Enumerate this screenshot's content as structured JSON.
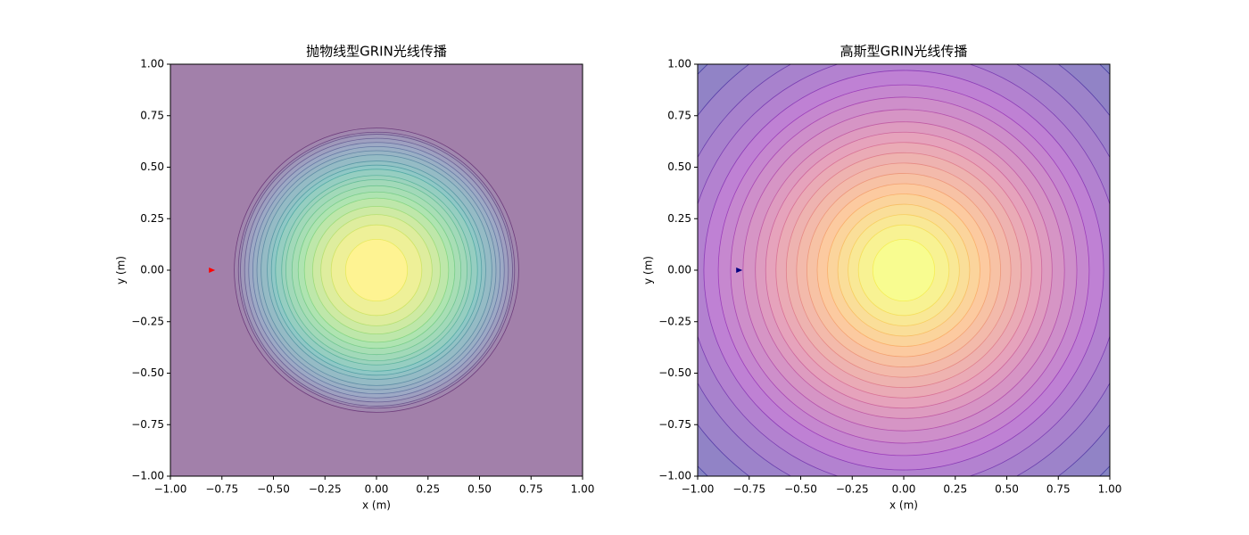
{
  "chart_data": [
    {
      "type": "contour",
      "title": "抛物线型GRIN光线传播",
      "x_label": "x (m)",
      "y_label": "y (m)",
      "colormap": "viridis",
      "alpha": 0.5,
      "contour_radii": [
        0.69,
        0.67,
        0.66,
        0.64,
        0.62,
        0.6,
        0.58,
        0.56,
        0.53,
        0.51,
        0.49,
        0.46,
        0.44,
        0.41,
        0.38,
        0.35,
        0.31,
        0.27,
        0.22,
        0.15
      ],
      "series": [
        {
          "x": [
            -0.8
          ],
          "values": [
            0
          ],
          "color": "red"
        }
      ],
      "xlim": [
        -1,
        1
      ],
      "ylim": [
        -1,
        1
      ],
      "xticks": [
        {
          "value": -1,
          "label": "−1.00"
        },
        {
          "value": -0.75,
          "label": "−0.75"
        },
        {
          "value": -0.5,
          "label": "−0.50"
        },
        {
          "value": -0.25,
          "label": "−0.25"
        },
        {
          "value": 0,
          "label": "0.00"
        },
        {
          "value": 0.25,
          "label": "0.25"
        },
        {
          "value": 0.5,
          "label": "0.50"
        },
        {
          "value": 0.75,
          "label": "0.75"
        },
        {
          "value": 1,
          "label": "1.00"
        }
      ],
      "yticks": [
        {
          "value": -1,
          "label": "−1.00"
        },
        {
          "value": -0.75,
          "label": "−0.75"
        },
        {
          "value": -0.5,
          "label": "−0.50"
        },
        {
          "value": -0.25,
          "label": "−0.25"
        },
        {
          "value": 0,
          "label": "0.00"
        },
        {
          "value": 0.25,
          "label": "0.25"
        },
        {
          "value": 0.5,
          "label": "0.50"
        },
        {
          "value": 0.75,
          "label": "0.75"
        },
        {
          "value": 1,
          "label": "1.00"
        }
      ]
    },
    {
      "type": "contour",
      "title": "高斯型GRIN光线传播",
      "x_label": "x (m)",
      "y_label": "y (m)",
      "colormap": "plasma",
      "alpha": 0.5,
      "contour_radii": [
        1.38,
        1.25,
        1.14,
        1.05,
        0.97,
        0.9,
        0.84,
        0.78,
        0.72,
        0.67,
        0.62,
        0.57,
        0.52,
        0.47,
        0.42,
        0.37,
        0.32,
        0.27,
        0.22,
        0.15
      ],
      "series": [
        {
          "x": [
            -0.8
          ],
          "values": [
            0
          ],
          "color": "navy"
        }
      ],
      "xlim": [
        -1,
        1
      ],
      "ylim": [
        -1,
        1
      ],
      "xticks": [
        {
          "value": -1,
          "label": "−1.00"
        },
        {
          "value": -0.75,
          "label": "−0.75"
        },
        {
          "value": -0.5,
          "label": "−0.50"
        },
        {
          "value": -0.25,
          "label": "−0.25"
        },
        {
          "value": 0,
          "label": "0.00"
        },
        {
          "value": 0.25,
          "label": "0.25"
        },
        {
          "value": 0.5,
          "label": "0.50"
        },
        {
          "value": 0.75,
          "label": "0.75"
        },
        {
          "value": 1,
          "label": "1.00"
        }
      ],
      "yticks": [
        {
          "value": -1,
          "label": "−1.00"
        },
        {
          "value": -0.75,
          "label": "−0.75"
        },
        {
          "value": -0.5,
          "label": "−0.50"
        },
        {
          "value": -0.25,
          "label": "−0.25"
        },
        {
          "value": 0,
          "label": "0.00"
        },
        {
          "value": 0.25,
          "label": "0.25"
        },
        {
          "value": 0.5,
          "label": "0.50"
        },
        {
          "value": 0.75,
          "label": "0.75"
        },
        {
          "value": 1,
          "label": "1.00"
        }
      ]
    }
  ]
}
